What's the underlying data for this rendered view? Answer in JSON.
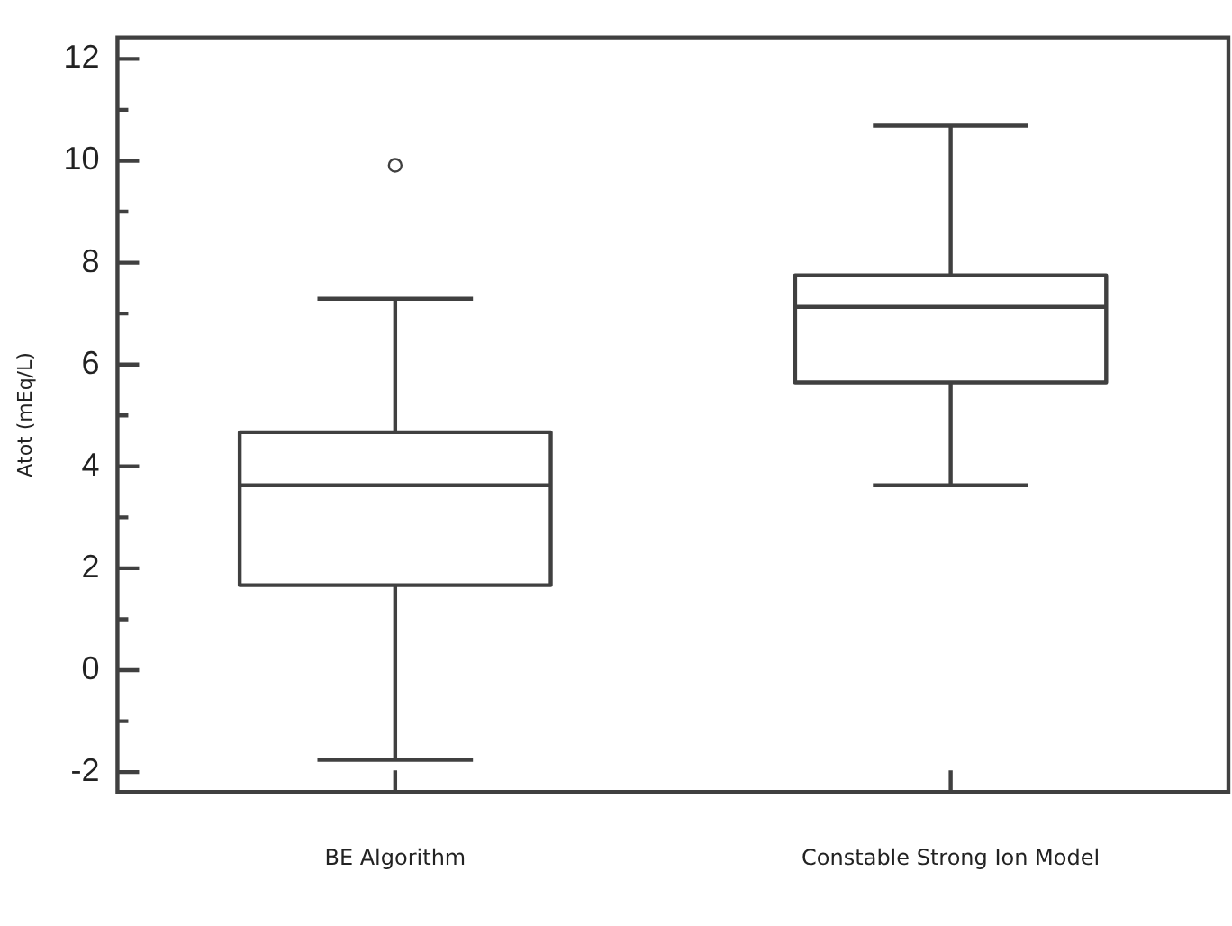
{
  "chart_data": {
    "type": "box",
    "ylabel": "Atot (mEq/L)",
    "categories": [
      "BE Algorithm",
      "Constable Strong Ion Model"
    ],
    "boxes": [
      {
        "low": -1.76,
        "q1": 1.67,
        "median": 3.63,
        "q3": 4.67,
        "high": 7.29,
        "outliers": [
          9.91
        ]
      },
      {
        "low": 3.63,
        "q1": 5.65,
        "median": 7.13,
        "q3": 7.75,
        "high": 10.69
      }
    ],
    "color": "#404040",
    "ylim": [
      -2.39,
      12.42
    ],
    "yticks": [
      -2,
      {
        "value": -1,
        "label": null
      },
      0,
      {
        "value": 1,
        "label": null
      },
      2,
      {
        "value": 3,
        "label": null
      },
      4,
      {
        "value": 5,
        "label": null
      },
      6,
      {
        "value": 7,
        "label": null
      },
      8,
      {
        "value": 9,
        "label": null
      },
      10,
      {
        "value": 11,
        "label": null
      },
      12
    ],
    "grid": false,
    "legend": false
  }
}
